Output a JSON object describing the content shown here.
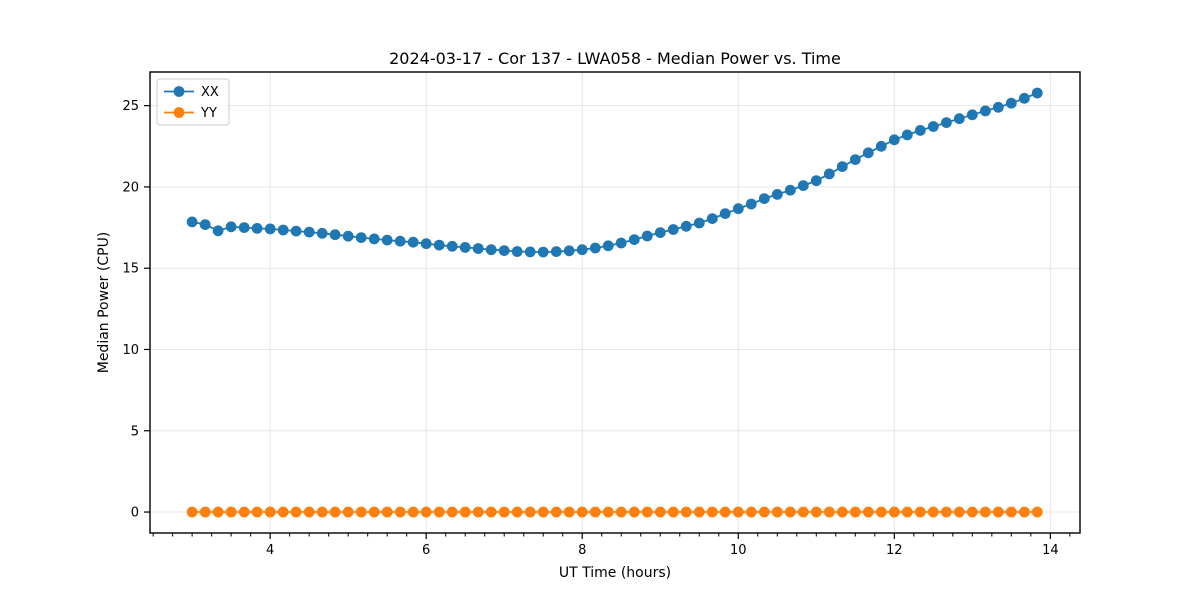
{
  "chart_data": {
    "type": "line",
    "title": "2024-03-17 - Cor 137 - LWA058 - Median Power vs. Time",
    "xlabel": "UT Time (hours)",
    "ylabel": "Median Power (CPU)",
    "xlim": [
      2.46,
      14.38
    ],
    "ylim": [
      -1.29,
      27.07
    ],
    "xticks": [
      4,
      6,
      8,
      10,
      12,
      14
    ],
    "yticks": [
      0,
      5,
      10,
      15,
      20,
      25
    ],
    "x_minor_step": 0.25,
    "grid": true,
    "legend_position": "upper-left",
    "legend_entries": [
      "XX",
      "YY"
    ],
    "x": [
      3.0,
      3.167,
      3.333,
      3.5,
      3.667,
      3.833,
      4.0,
      4.167,
      4.333,
      4.5,
      4.667,
      4.833,
      5.0,
      5.167,
      5.333,
      5.5,
      5.667,
      5.833,
      6.0,
      6.167,
      6.333,
      6.5,
      6.667,
      6.833,
      7.0,
      7.167,
      7.333,
      7.5,
      7.667,
      7.833,
      8.0,
      8.167,
      8.333,
      8.5,
      8.667,
      8.833,
      9.0,
      9.167,
      9.333,
      9.5,
      9.667,
      9.833,
      10.0,
      10.167,
      10.333,
      10.5,
      10.667,
      10.833,
      11.0,
      11.167,
      11.333,
      11.5,
      11.667,
      11.833,
      12.0,
      12.167,
      12.333,
      12.5,
      12.667,
      12.833,
      13.0,
      13.167,
      13.333,
      13.5,
      13.667,
      13.833
    ],
    "series": [
      {
        "name": "XX",
        "color": "#1f77b4",
        "values": [
          17.85,
          17.68,
          17.3,
          17.55,
          17.5,
          17.45,
          17.42,
          17.35,
          17.28,
          17.22,
          17.15,
          17.06,
          16.97,
          16.88,
          16.8,
          16.73,
          16.66,
          16.6,
          16.51,
          16.42,
          16.35,
          16.28,
          16.21,
          16.14,
          16.08,
          16.03,
          16.0,
          15.99,
          16.02,
          16.07,
          16.14,
          16.24,
          16.38,
          16.55,
          16.76,
          16.98,
          17.19,
          17.38,
          17.58,
          17.78,
          18.05,
          18.36,
          18.66,
          18.95,
          19.28,
          19.54,
          19.8,
          20.08,
          20.38,
          20.8,
          21.25,
          21.68,
          22.1,
          22.5,
          22.9,
          23.2,
          23.48,
          23.72,
          23.96,
          24.2,
          24.44,
          24.68,
          24.9,
          25.15,
          25.45,
          25.78
        ]
      },
      {
        "name": "YY",
        "color": "#ff7f0e",
        "values": [
          0.0,
          0.0,
          0.0,
          0.0,
          0.0,
          0.0,
          0.0,
          0.0,
          0.0,
          0.0,
          0.0,
          0.0,
          0.0,
          0.0,
          0.0,
          0.0,
          0.0,
          0.0,
          0.0,
          0.0,
          0.0,
          0.0,
          0.0,
          0.0,
          0.0,
          0.0,
          0.0,
          0.0,
          0.0,
          0.0,
          0.0,
          0.0,
          0.0,
          0.0,
          0.0,
          0.0,
          0.0,
          0.0,
          0.0,
          0.0,
          0.0,
          0.0,
          0.0,
          0.0,
          0.0,
          0.0,
          0.0,
          0.0,
          0.0,
          0.0,
          0.0,
          0.0,
          0.0,
          0.0,
          0.0,
          0.0,
          0.0,
          0.0,
          0.0,
          0.0,
          0.0,
          0.0,
          0.0,
          0.0,
          0.0,
          0.0
        ]
      }
    ],
    "colors": {
      "grid": "#e6e6e6",
      "spine": "#000000",
      "tick": "#000000",
      "legend_border": "#cccccc",
      "legend_bg": "#ffffff"
    }
  }
}
